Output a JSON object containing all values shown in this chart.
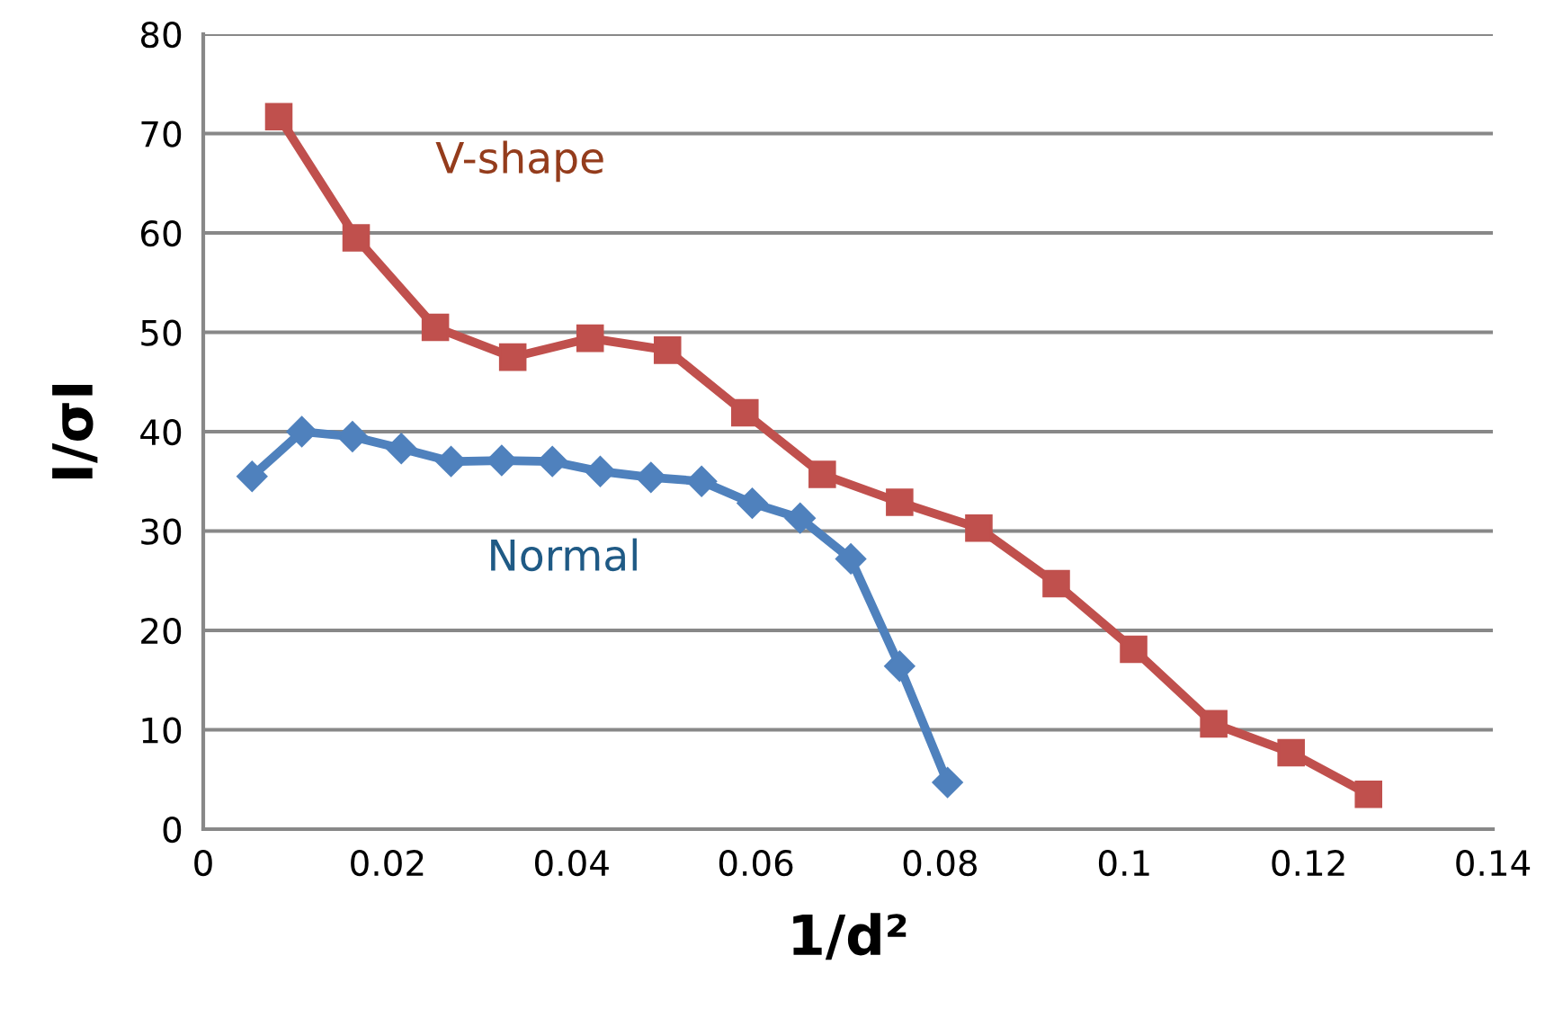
{
  "chart_data": {
    "type": "line",
    "xlabel": "1/d²",
    "ylabel": "I/σI",
    "xlim": [
      0,
      0.14
    ],
    "xticks": [
      0,
      0.02,
      0.04,
      0.06,
      0.08,
      0.1,
      0.12,
      0.14
    ],
    "ylim": [
      0,
      80
    ],
    "yticks": [
      0,
      10,
      20,
      30,
      40,
      50,
      60,
      70,
      80
    ],
    "grid": "y",
    "legend": false,
    "series": [
      {
        "name": "Normal",
        "color": "#4f81bd",
        "marker": "diamond",
        "x": [
          0.0053,
          0.0107,
          0.0162,
          0.0215,
          0.0269,
          0.0324,
          0.0379,
          0.0431,
          0.0486,
          0.0541,
          0.0596,
          0.0648,
          0.0703,
          0.0756,
          0.0808
        ],
        "values": [
          35.5,
          40,
          39.5,
          38.3,
          37,
          37.1,
          37,
          36,
          35.4,
          35,
          32.8,
          31.3,
          27.2,
          16.4,
          4.7
        ]
      },
      {
        "name": "V-shape",
        "color": "#c0504d",
        "marker": "square",
        "x": [
          0.0082,
          0.0166,
          0.0252,
          0.0336,
          0.042,
          0.0504,
          0.0588,
          0.0672,
          0.0756,
          0.0842,
          0.0926,
          0.101,
          0.1097,
          0.1181,
          0.1265
        ],
        "values": [
          71.7,
          59.5,
          50.5,
          47.5,
          49.4,
          48.2,
          41.9,
          35.7,
          32.9,
          30.3,
          24.7,
          18.1,
          10.6,
          7.7,
          3.5
        ]
      }
    ]
  }
}
